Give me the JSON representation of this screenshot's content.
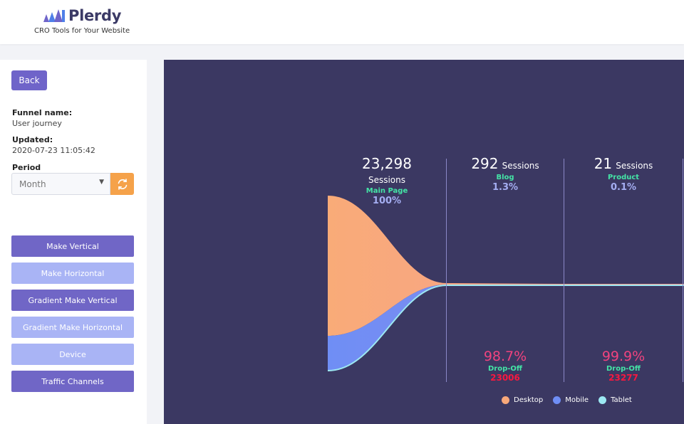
{
  "header": {
    "logo_text": "Plerdy",
    "tagline": "CRO Tools for Your Website"
  },
  "sidebar": {
    "back_label": "Back",
    "funnel_name_label": "Funnel name:",
    "funnel_name": "User journey",
    "updated_label": "Updated:",
    "updated": "2020-07-23 11:05:42",
    "period_label": "Period",
    "period_value": "Month",
    "buttons": {
      "make_vertical": "Make Vertical",
      "make_horizontal": "Make Horizontal",
      "gradient_vertical": "Gradient Make Vertical",
      "gradient_horizontal": "Gradient Make Horizontal",
      "device": "Device",
      "traffic_channels": "Traffic Channels"
    }
  },
  "funnel": {
    "unit": "Sessions",
    "stages": [
      {
        "sessions": "23,298",
        "name": "Main Page",
        "percent": "100%"
      },
      {
        "sessions": "292",
        "name": "Blog",
        "percent": "1.3%"
      },
      {
        "sessions": "21",
        "name": "Product",
        "percent": "0.1%"
      }
    ],
    "dropoffs": [
      {
        "percent": "98.7%",
        "label": "Drop-Off",
        "count": "23006"
      },
      {
        "percent": "99.9%",
        "label": "Drop-Off",
        "count": "23277"
      }
    ],
    "legend": [
      {
        "name": "Desktop",
        "color": "#f8a87a"
      },
      {
        "name": "Mobile",
        "color": "#6f8ef5"
      },
      {
        "name": "Tablet",
        "color": "#9ce8f2"
      }
    ]
  },
  "colors": {
    "accent": "#6f64c9",
    "accent_light": "#a9b4f5",
    "refresh": "#f5a24a",
    "panel_bg": "#3b3862",
    "stage_name": "#44e5a6",
    "drop_percent": "#f0437e"
  }
}
